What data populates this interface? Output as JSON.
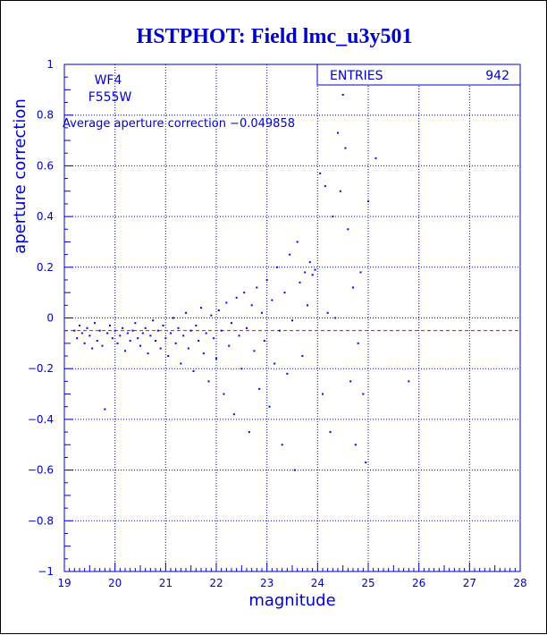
{
  "chart_data": {
    "type": "scatter",
    "title": "HSTPHOT: Field lmc_u3y501",
    "xlabel": "magnitude",
    "ylabel": "aperture correction",
    "xlim": [
      19,
      28
    ],
    "ylim": [
      -1,
      1
    ],
    "x_ticks": [
      19,
      20,
      21,
      22,
      23,
      24,
      25,
      26,
      27,
      28
    ],
    "y_ticks": [
      -1,
      -0.8,
      -0.6,
      -0.4,
      -0.2,
      0,
      0.2,
      0.4,
      0.6,
      0.8,
      1
    ],
    "x_tick_labels": [
      "19",
      "20",
      "21",
      "22",
      "23",
      "24",
      "25",
      "26",
      "27",
      "28"
    ],
    "y_tick_labels": [
      "−1",
      "−0.8",
      "−0.6",
      "−0.4",
      "−0.2",
      "0",
      "0.2",
      "0.4",
      "0.6",
      "0.8",
      "1"
    ],
    "grid": true,
    "colors": {
      "points": "#0000ff",
      "axes": "#0000cc",
      "average_line": "#ff0000",
      "title": "#0000cc"
    },
    "annotations": {
      "chip": "WF4",
      "filter": "F555W",
      "average_text": "Average aperture correction −0.049858"
    },
    "average_value": -0.049858,
    "stats_box": {
      "label": "ENTRIES",
      "value": "942"
    },
    "points": [
      [
        19.2,
        -0.05
      ],
      [
        19.25,
        -0.08
      ],
      [
        19.3,
        -0.03
      ],
      [
        19.35,
        -0.06
      ],
      [
        19.4,
        -0.1
      ],
      [
        19.45,
        -0.04
      ],
      [
        19.5,
        -0.07
      ],
      [
        19.55,
        -0.12
      ],
      [
        19.6,
        -0.02
      ],
      [
        19.65,
        -0.09
      ],
      [
        19.7,
        -0.05
      ],
      [
        19.75,
        -0.11
      ],
      [
        19.8,
        -0.36
      ],
      [
        19.85,
        -0.06
      ],
      [
        19.9,
        -0.03
      ],
      [
        19.95,
        -0.08
      ],
      [
        20.0,
        -0.05
      ],
      [
        20.05,
        -0.1
      ],
      [
        20.1,
        -0.07
      ],
      [
        20.15,
        -0.04
      ],
      [
        20.2,
        -0.13
      ],
      [
        20.25,
        -0.06
      ],
      [
        20.3,
        -0.09
      ],
      [
        20.35,
        -0.05
      ],
      [
        20.4,
        -0.02
      ],
      [
        20.45,
        -0.08
      ],
      [
        20.5,
        -0.11
      ],
      [
        20.55,
        -0.06
      ],
      [
        20.6,
        -0.04
      ],
      [
        20.65,
        -0.14
      ],
      [
        20.7,
        -0.07
      ],
      [
        20.75,
        -0.01
      ],
      [
        20.8,
        -0.09
      ],
      [
        20.85,
        -0.05
      ],
      [
        20.9,
        -0.12
      ],
      [
        20.95,
        -0.03
      ],
      [
        21.0,
        -0.08
      ],
      [
        21.05,
        -0.15
      ],
      [
        21.1,
        -0.06
      ],
      [
        21.15,
        0.0
      ],
      [
        21.2,
        -0.1
      ],
      [
        21.25,
        -0.04
      ],
      [
        21.3,
        -0.18
      ],
      [
        21.35,
        -0.07
      ],
      [
        21.4,
        0.02
      ],
      [
        21.45,
        -0.12
      ],
      [
        21.5,
        -0.05
      ],
      [
        21.55,
        -0.21
      ],
      [
        21.6,
        -0.03
      ],
      [
        21.65,
        -0.09
      ],
      [
        21.7,
        0.04
      ],
      [
        21.75,
        -0.14
      ],
      [
        21.8,
        -0.06
      ],
      [
        21.85,
        -0.25
      ],
      [
        21.9,
        0.01
      ],
      [
        21.95,
        -0.08
      ],
      [
        22.0,
        -0.16
      ],
      [
        22.05,
        0.03
      ],
      [
        22.1,
        -0.05
      ],
      [
        22.15,
        -0.3
      ],
      [
        22.2,
        0.06
      ],
      [
        22.25,
        -0.11
      ],
      [
        22.3,
        -0.02
      ],
      [
        22.35,
        -0.38
      ],
      [
        22.4,
        0.08
      ],
      [
        22.45,
        -0.07
      ],
      [
        22.5,
        -0.2
      ],
      [
        22.55,
        0.1
      ],
      [
        22.6,
        -0.04
      ],
      [
        22.65,
        -0.45
      ],
      [
        22.7,
        0.05
      ],
      [
        22.75,
        -0.13
      ],
      [
        22.8,
        0.12
      ],
      [
        22.85,
        -0.28
      ],
      [
        22.9,
        0.02
      ],
      [
        22.95,
        -0.09
      ],
      [
        23.0,
        0.15
      ],
      [
        23.05,
        -0.35
      ],
      [
        23.1,
        0.07
      ],
      [
        23.15,
        -0.18
      ],
      [
        23.2,
        0.2
      ],
      [
        23.25,
        -0.05
      ],
      [
        23.3,
        -0.5
      ],
      [
        23.35,
        0.1
      ],
      [
        23.4,
        -0.22
      ],
      [
        23.45,
        0.25
      ],
      [
        23.5,
        -0.01
      ],
      [
        23.55,
        -0.6
      ],
      [
        23.6,
        0.3
      ],
      [
        23.65,
        0.14
      ],
      [
        23.7,
        -0.15
      ],
      [
        23.75,
        0.18
      ],
      [
        23.8,
        0.05
      ],
      [
        23.85,
        0.22
      ],
      [
        23.9,
        0.17
      ],
      [
        23.95,
        0.19
      ],
      [
        24.05,
        0.57
      ],
      [
        24.1,
        -0.3
      ],
      [
        24.15,
        0.52
      ],
      [
        24.2,
        0.02
      ],
      [
        24.25,
        -0.45
      ],
      [
        24.3,
        0.4
      ],
      [
        24.35,
        0.0
      ],
      [
        24.4,
        0.73
      ],
      [
        24.45,
        0.5
      ],
      [
        24.5,
        0.88
      ],
      [
        24.55,
        0.67
      ],
      [
        24.6,
        0.35
      ],
      [
        24.65,
        -0.25
      ],
      [
        24.7,
        0.12
      ],
      [
        24.75,
        -0.5
      ],
      [
        24.8,
        -0.1
      ],
      [
        24.85,
        0.18
      ],
      [
        24.9,
        -0.3
      ],
      [
        24.95,
        -0.57
      ],
      [
        25.0,
        0.46
      ],
      [
        25.15,
        0.63
      ],
      [
        25.8,
        -0.25
      ]
    ]
  }
}
